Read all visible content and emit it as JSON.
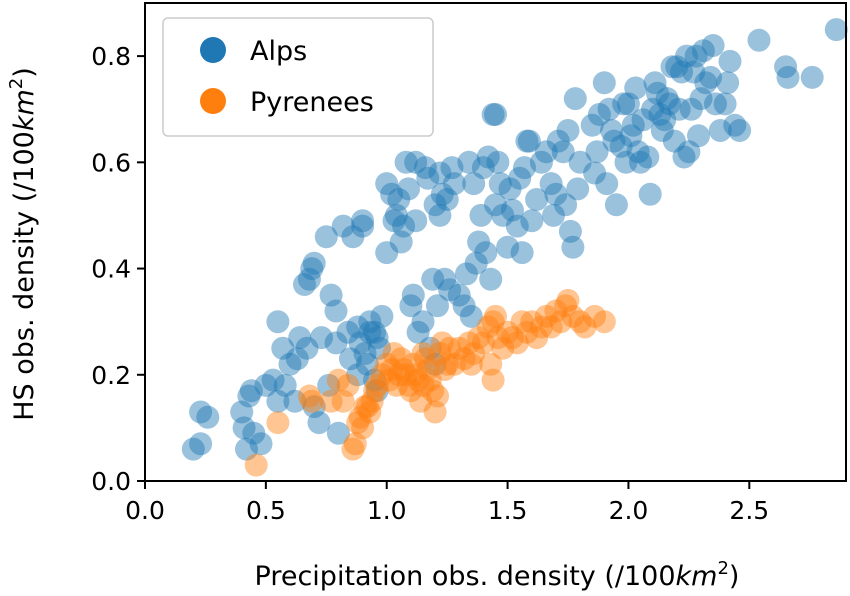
{
  "chart_data": {
    "type": "scatter",
    "title": "",
    "xlabel": "Precipitation obs. density (/100",
    "xlabel_unit": "km",
    "xlabel_sup": "2",
    "xlabel_close": ")",
    "ylabel": "HS obs. density (/100",
    "ylabel_unit": "km",
    "ylabel_sup": "2",
    "ylabel_close": ")",
    "xlim": [
      0.0,
      2.9
    ],
    "ylim": [
      0.0,
      0.9
    ],
    "xticks": [
      0.0,
      0.5,
      1.0,
      1.5,
      2.0,
      2.5
    ],
    "xtick_labels": [
      "0.0",
      "0.5",
      "1.0",
      "1.5",
      "2.0",
      "2.5"
    ],
    "yticks": [
      0.0,
      0.2,
      0.4,
      0.6,
      0.8
    ],
    "ytick_labels": [
      "0.0",
      "0.2",
      "0.4",
      "0.6",
      "0.8"
    ],
    "grid": false,
    "legend_position": "top-left",
    "series": [
      {
        "name": "Alps",
        "color": "#1f77b4",
        "points": [
          [
            0.2,
            0.06
          ],
          [
            0.23,
            0.07
          ],
          [
            0.23,
            0.13
          ],
          [
            0.26,
            0.12
          ],
          [
            0.4,
            0.13
          ],
          [
            0.41,
            0.1
          ],
          [
            0.42,
            0.06
          ],
          [
            0.43,
            0.16
          ],
          [
            0.44,
            0.17
          ],
          [
            0.45,
            0.09
          ],
          [
            0.48,
            0.07
          ],
          [
            0.5,
            0.18
          ],
          [
            0.53,
            0.19
          ],
          [
            0.55,
            0.15
          ],
          [
            0.55,
            0.3
          ],
          [
            0.57,
            0.25
          ],
          [
            0.58,
            0.18
          ],
          [
            0.6,
            0.22
          ],
          [
            0.62,
            0.15
          ],
          [
            0.63,
            0.23
          ],
          [
            0.64,
            0.27
          ],
          [
            0.66,
            0.37
          ],
          [
            0.67,
            0.25
          ],
          [
            0.68,
            0.38
          ],
          [
            0.69,
            0.4
          ],
          [
            0.7,
            0.41
          ],
          [
            0.7,
            0.14
          ],
          [
            0.72,
            0.11
          ],
          [
            0.73,
            0.27
          ],
          [
            0.75,
            0.46
          ],
          [
            0.76,
            0.18
          ],
          [
            0.77,
            0.35
          ],
          [
            0.79,
            0.32
          ],
          [
            0.79,
            0.26
          ],
          [
            0.8,
            0.09
          ],
          [
            0.82,
            0.48
          ],
          [
            0.84,
            0.28
          ],
          [
            0.85,
            0.23
          ],
          [
            0.86,
            0.46
          ],
          [
            0.88,
            0.2
          ],
          [
            0.88,
            0.29
          ],
          [
            0.89,
            0.26
          ],
          [
            0.9,
            0.48
          ],
          [
            0.9,
            0.49
          ],
          [
            0.91,
            0.24
          ],
          [
            0.92,
            0.22
          ],
          [
            0.93,
            0.28
          ],
          [
            0.93,
            0.3
          ],
          [
            0.95,
            0.19
          ],
          [
            0.95,
            0.28
          ],
          [
            0.96,
            0.27
          ],
          [
            0.96,
            0.17
          ],
          [
            0.97,
            0.25
          ],
          [
            0.98,
            0.31
          ],
          [
            1.0,
            0.43
          ],
          [
            1.0,
            0.56
          ],
          [
            1.02,
            0.54
          ],
          [
            1.03,
            0.49
          ],
          [
            1.04,
            0.5
          ],
          [
            1.05,
            0.53
          ],
          [
            1.06,
            0.45
          ],
          [
            1.07,
            0.48
          ],
          [
            1.08,
            0.6
          ],
          [
            1.09,
            0.55
          ],
          [
            1.1,
            0.33
          ],
          [
            1.11,
            0.35
          ],
          [
            1.12,
            0.6
          ],
          [
            1.12,
            0.49
          ],
          [
            1.13,
            0.28
          ],
          [
            1.15,
            0.3
          ],
          [
            1.16,
            0.59
          ],
          [
            1.17,
            0.57
          ],
          [
            1.18,
            0.25
          ],
          [
            1.19,
            0.38
          ],
          [
            1.2,
            0.52
          ],
          [
            1.2,
            0.22
          ],
          [
            1.21,
            0.33
          ],
          [
            1.22,
            0.5
          ],
          [
            1.22,
            0.58
          ],
          [
            1.23,
            0.54
          ],
          [
            1.24,
            0.38
          ],
          [
            1.25,
            0.53
          ],
          [
            1.26,
            0.36
          ],
          [
            1.27,
            0.59
          ],
          [
            1.28,
            0.56
          ],
          [
            1.3,
            0.35
          ],
          [
            1.32,
            0.33
          ],
          [
            1.33,
            0.39
          ],
          [
            1.34,
            0.6
          ],
          [
            1.35,
            0.31
          ],
          [
            1.36,
            0.56
          ],
          [
            1.37,
            0.41
          ],
          [
            1.38,
            0.45
          ],
          [
            1.39,
            0.5
          ],
          [
            1.4,
            0.59
          ],
          [
            1.41,
            0.43
          ],
          [
            1.42,
            0.61
          ],
          [
            1.43,
            0.38
          ],
          [
            1.44,
            0.69
          ],
          [
            1.45,
            0.69
          ],
          [
            1.45,
            0.52
          ],
          [
            1.46,
            0.6
          ],
          [
            1.47,
            0.56
          ],
          [
            1.48,
            0.5
          ],
          [
            1.5,
            0.44
          ],
          [
            1.51,
            0.55
          ],
          [
            1.52,
            0.51
          ],
          [
            1.54,
            0.48
          ],
          [
            1.55,
            0.57
          ],
          [
            1.56,
            0.43
          ],
          [
            1.57,
            0.59
          ],
          [
            1.58,
            0.64
          ],
          [
            1.59,
            0.64
          ],
          [
            1.6,
            0.49
          ],
          [
            1.62,
            0.53
          ],
          [
            1.64,
            0.6
          ],
          [
            1.66,
            0.62
          ],
          [
            1.68,
            0.56
          ],
          [
            1.69,
            0.5
          ],
          [
            1.7,
            0.54
          ],
          [
            1.71,
            0.64
          ],
          [
            1.73,
            0.62
          ],
          [
            1.74,
            0.52
          ],
          [
            1.75,
            0.66
          ],
          [
            1.76,
            0.47
          ],
          [
            1.77,
            0.44
          ],
          [
            1.78,
            0.72
          ],
          [
            1.79,
            0.55
          ],
          [
            1.8,
            0.6
          ],
          [
            1.85,
            0.67
          ],
          [
            1.86,
            0.58
          ],
          [
            1.87,
            0.62
          ],
          [
            1.88,
            0.69
          ],
          [
            1.9,
            0.75
          ],
          [
            1.91,
            0.56
          ],
          [
            1.92,
            0.7
          ],
          [
            1.93,
            0.66
          ],
          [
            1.94,
            0.64
          ],
          [
            1.95,
            0.52
          ],
          [
            1.97,
            0.63
          ],
          [
            1.98,
            0.71
          ],
          [
            1.99,
            0.6
          ],
          [
            2.0,
            0.71
          ],
          [
            2.01,
            0.65
          ],
          [
            2.02,
            0.67
          ],
          [
            2.03,
            0.74
          ],
          [
            2.04,
            0.62
          ],
          [
            2.05,
            0.6
          ],
          [
            2.06,
            0.68
          ],
          [
            2.08,
            0.61
          ],
          [
            2.09,
            0.54
          ],
          [
            2.1,
            0.7
          ],
          [
            2.11,
            0.75
          ],
          [
            2.12,
            0.73
          ],
          [
            2.13,
            0.69
          ],
          [
            2.14,
            0.66
          ],
          [
            2.15,
            0.68
          ],
          [
            2.16,
            0.72
          ],
          [
            2.17,
            0.71
          ],
          [
            2.18,
            0.78
          ],
          [
            2.19,
            0.64
          ],
          [
            2.2,
            0.78
          ],
          [
            2.21,
            0.7
          ],
          [
            2.22,
            0.77
          ],
          [
            2.23,
            0.61
          ],
          [
            2.24,
            0.8
          ],
          [
            2.25,
            0.62
          ],
          [
            2.26,
            0.7
          ],
          [
            2.27,
            0.77
          ],
          [
            2.28,
            0.8
          ],
          [
            2.29,
            0.65
          ],
          [
            2.3,
            0.72
          ],
          [
            2.31,
            0.81
          ],
          [
            2.32,
            0.75
          ],
          [
            2.34,
            0.76
          ],
          [
            2.35,
            0.82
          ],
          [
            2.36,
            0.71
          ],
          [
            2.38,
            0.66
          ],
          [
            2.4,
            0.71
          ],
          [
            2.41,
            0.75
          ],
          [
            2.42,
            0.79
          ],
          [
            2.44,
            0.67
          ],
          [
            2.46,
            0.66
          ],
          [
            2.54,
            0.83
          ],
          [
            2.65,
            0.78
          ],
          [
            2.66,
            0.76
          ],
          [
            2.76,
            0.76
          ],
          [
            2.86,
            0.85
          ]
        ]
      },
      {
        "name": "Pyrenees",
        "color": "#ff7f0e",
        "points": [
          [
            0.46,
            0.03
          ],
          [
            0.55,
            0.11
          ],
          [
            0.68,
            0.16
          ],
          [
            0.69,
            0.15
          ],
          [
            0.77,
            0.15
          ],
          [
            0.8,
            0.19
          ],
          [
            0.82,
            0.15
          ],
          [
            0.84,
            0.18
          ],
          [
            0.86,
            0.06
          ],
          [
            0.87,
            0.07
          ],
          [
            0.88,
            0.11
          ],
          [
            0.89,
            0.12
          ],
          [
            0.9,
            0.1
          ],
          [
            0.91,
            0.14
          ],
          [
            0.92,
            0.14
          ],
          [
            0.93,
            0.13
          ],
          [
            0.94,
            0.15
          ],
          [
            0.95,
            0.17
          ],
          [
            0.96,
            0.18
          ],
          [
            0.98,
            0.2
          ],
          [
            1.0,
            0.22
          ],
          [
            1.01,
            0.19
          ],
          [
            1.02,
            0.21
          ],
          [
            1.03,
            0.24
          ],
          [
            1.04,
            0.18
          ],
          [
            1.05,
            0.2
          ],
          [
            1.06,
            0.23
          ],
          [
            1.07,
            0.21
          ],
          [
            1.08,
            0.2
          ],
          [
            1.09,
            0.18
          ],
          [
            1.1,
            0.17
          ],
          [
            1.11,
            0.22
          ],
          [
            1.12,
            0.2
          ],
          [
            1.13,
            0.19
          ],
          [
            1.14,
            0.15
          ],
          [
            1.15,
            0.24
          ],
          [
            1.16,
            0.23
          ],
          [
            1.17,
            0.21
          ],
          [
            1.18,
            0.19
          ],
          [
            1.19,
            0.17
          ],
          [
            1.2,
            0.13
          ],
          [
            1.21,
            0.16
          ],
          [
            1.22,
            0.24
          ],
          [
            1.23,
            0.26
          ],
          [
            1.24,
            0.21
          ],
          [
            1.26,
            0.25
          ],
          [
            1.28,
            0.22
          ],
          [
            1.3,
            0.25
          ],
          [
            1.32,
            0.23
          ],
          [
            1.34,
            0.26
          ],
          [
            1.36,
            0.24
          ],
          [
            1.38,
            0.27
          ],
          [
            1.4,
            0.26
          ],
          [
            1.42,
            0.29
          ],
          [
            1.43,
            0.22
          ],
          [
            1.44,
            0.3
          ],
          [
            1.45,
            0.31
          ],
          [
            1.46,
            0.27
          ],
          [
            1.48,
            0.25
          ],
          [
            1.5,
            0.28
          ],
          [
            1.52,
            0.27
          ],
          [
            1.54,
            0.26
          ],
          [
            1.56,
            0.3
          ],
          [
            1.58,
            0.28
          ],
          [
            1.6,
            0.3
          ],
          [
            1.62,
            0.27
          ],
          [
            1.64,
            0.29
          ],
          [
            1.66,
            0.31
          ],
          [
            1.68,
            0.29
          ],
          [
            1.7,
            0.32
          ],
          [
            1.72,
            0.3
          ],
          [
            1.74,
            0.33
          ],
          [
            1.75,
            0.34
          ],
          [
            1.77,
            0.31
          ],
          [
            1.8,
            0.3
          ],
          [
            1.82,
            0.29
          ],
          [
            1.86,
            0.31
          ],
          [
            1.9,
            0.3
          ],
          [
            1.44,
            0.19
          ],
          [
            1.35,
            0.22
          ],
          [
            1.25,
            0.22
          ],
          [
            1.15,
            0.18
          ]
        ]
      }
    ]
  }
}
